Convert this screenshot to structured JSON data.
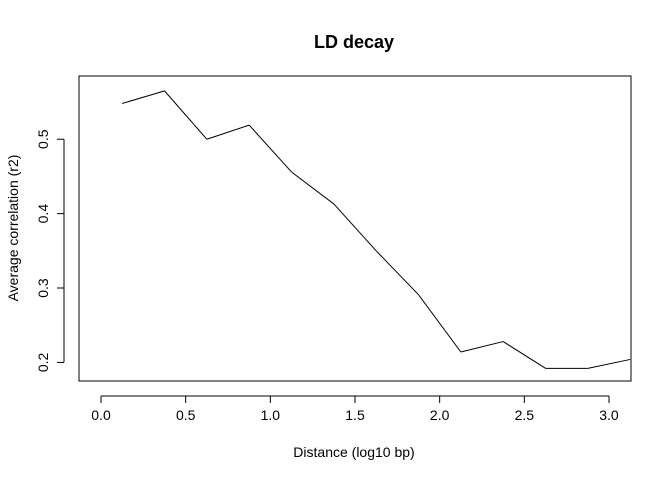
{
  "chart_data": {
    "type": "line",
    "title": "LD decay",
    "xlabel": "Distance (log10 bp)",
    "ylabel": "Average correlation (r2)",
    "xlim": [
      -0.13,
      3.13
    ],
    "ylim": [
      0.175,
      0.585
    ],
    "x_ticks": [
      {
        "value": 0.0,
        "label": "0.0"
      },
      {
        "value": 0.5,
        "label": "0.5"
      },
      {
        "value": 1.0,
        "label": "1.0"
      },
      {
        "value": 1.5,
        "label": "1.5"
      },
      {
        "value": 2.0,
        "label": "2.0"
      },
      {
        "value": 2.5,
        "label": "2.5"
      },
      {
        "value": 3.0,
        "label": "3.0"
      }
    ],
    "y_ticks": [
      {
        "value": 0.2,
        "label": "0.2"
      },
      {
        "value": 0.3,
        "label": "0.3"
      },
      {
        "value": 0.4,
        "label": "0.4"
      },
      {
        "value": 0.5,
        "label": "0.5"
      }
    ],
    "grid": false,
    "series": [
      {
        "color": "#000000",
        "x": [
          0.125,
          0.375,
          0.625,
          0.875,
          1.125,
          1.375,
          1.625,
          1.875,
          2.125,
          2.375,
          2.625,
          2.875,
          3.125
        ],
        "y": [
          0.548,
          0.565,
          0.5,
          0.519,
          0.456,
          0.413,
          0.35,
          0.291,
          0.214,
          0.228,
          0.192,
          0.192,
          0.204
        ]
      }
    ]
  }
}
